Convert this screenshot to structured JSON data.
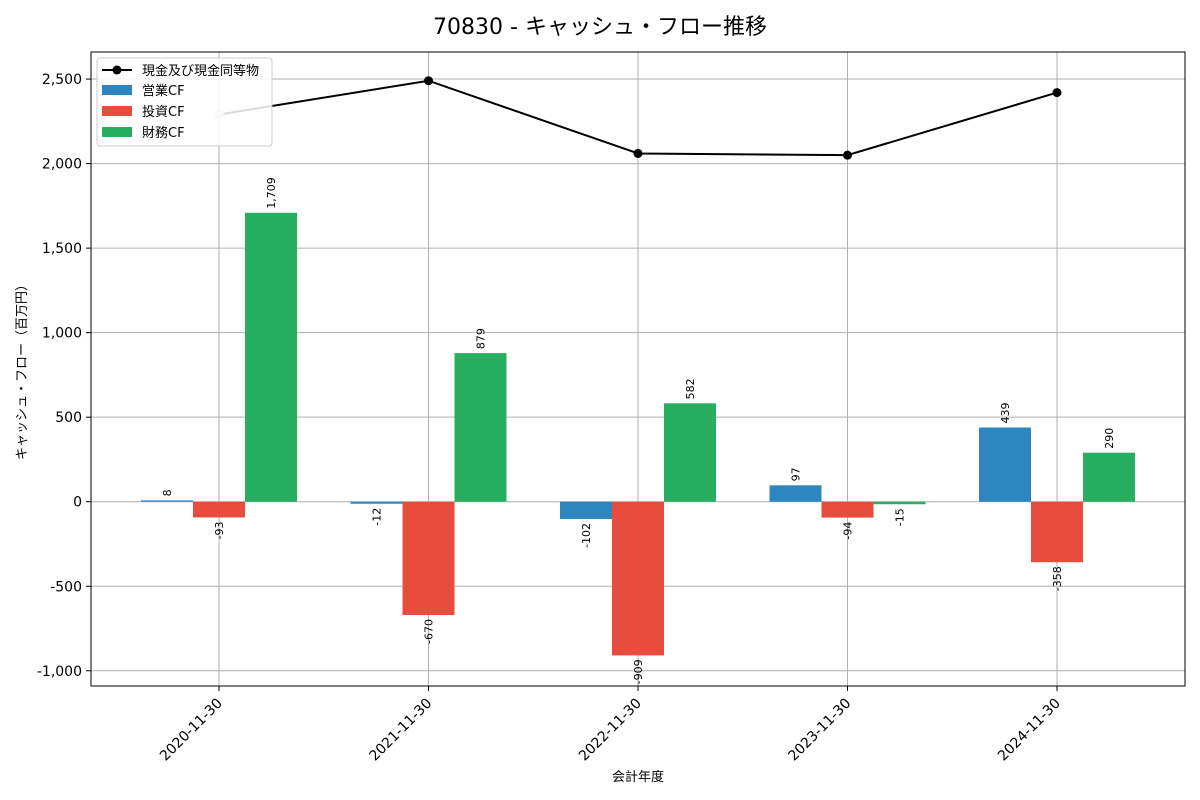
{
  "chart_data": {
    "type": "bar",
    "title": "70830 - キャッシュ・フロー推移",
    "xlabel": "会計年度",
    "ylabel": "キャッシュ・フロー（百万円）",
    "ylim": [
      -1090,
      2660
    ],
    "yticks": [
      -1000,
      -500,
      0,
      500,
      1000,
      1500,
      2000,
      2500
    ],
    "ytick_labels": [
      "-1,000",
      "-500",
      "0",
      "500",
      "1,000",
      "1,500",
      "2,000",
      "2,500"
    ],
    "grid": true,
    "legend_position": "top-left",
    "categories": [
      "2020-11-30",
      "2021-11-30",
      "2022-11-30",
      "2023-11-30",
      "2024-11-30"
    ],
    "series": [
      {
        "name": "営業CF",
        "type": "bar",
        "color": "#2e86c1",
        "values": [
          8,
          -12,
          -102,
          97,
          439
        ],
        "labels": [
          "8",
          "-12",
          "-102",
          "97",
          "439"
        ]
      },
      {
        "name": "投資CF",
        "type": "bar",
        "color": "#e74c3c",
        "values": [
          -93,
          -670,
          -909,
          -94,
          -358
        ],
        "labels": [
          "-93",
          "-670",
          "-909",
          "-94",
          "-358"
        ]
      },
      {
        "name": "財務CF",
        "type": "bar",
        "color": "#27ae60",
        "values": [
          1709,
          879,
          582,
          -15,
          290
        ],
        "labels": [
          "1,709",
          "879",
          "582",
          "-15",
          "290"
        ]
      }
    ],
    "line_series": {
      "name": "現金及び現金同等物",
      "type": "line",
      "color": "#000000",
      "values": [
        2290,
        2490,
        2060,
        2050,
        2420
      ]
    },
    "legend_order": [
      "現金及び現金同等物",
      "営業CF",
      "投資CF",
      "財務CF"
    ]
  }
}
